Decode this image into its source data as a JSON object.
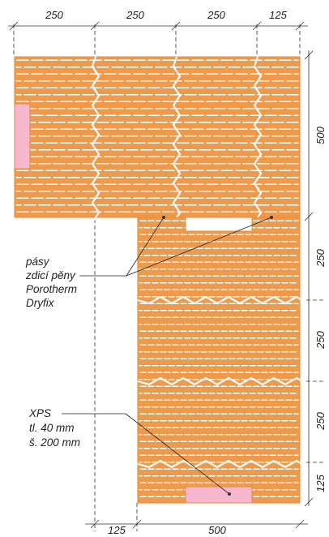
{
  "dimensions": {
    "top": [
      "250",
      "250",
      "250",
      "125"
    ],
    "right": [
      "500",
      "250",
      "250",
      "250",
      "125"
    ],
    "bottom": [
      "125",
      "500"
    ]
  },
  "callouts": {
    "foam": {
      "lines": [
        "pásy",
        "zdicí pěny",
        "Porotherm",
        "Dryfix"
      ]
    },
    "xps": {
      "lines": [
        "XPS",
        "tl. 40 mm",
        "š. 200 mm"
      ]
    }
  },
  "colors": {
    "brick": "#ee9a4c",
    "xps": "#f7b8cf",
    "line": "#333333"
  }
}
